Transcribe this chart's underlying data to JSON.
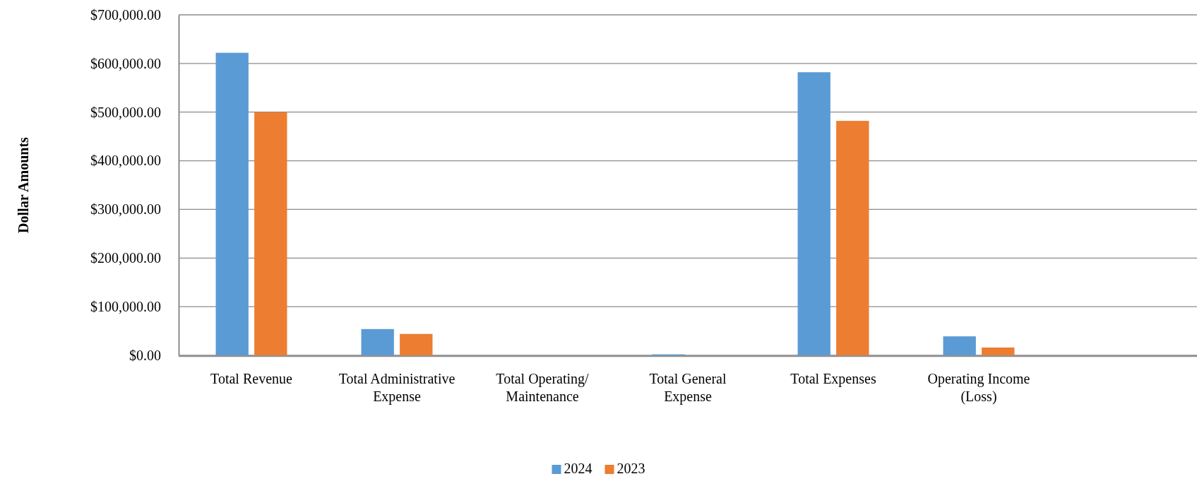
{
  "chart_data": {
    "type": "bar",
    "ylabel": "Dollar Amounts",
    "categories": [
      "Total Revenue",
      "Total Administrative Expense",
      "Total Operating/ Maintenance",
      "Total General Expense",
      "Total Expenses",
      "Operating Income (Loss)",
      null
    ],
    "series": [
      {
        "name": "2024",
        "color": "#5b9bd5",
        "values": [
          622000,
          54000,
          0,
          2000,
          582000,
          39000,
          null
        ]
      },
      {
        "name": "2023",
        "color": "#ed7d31",
        "values": [
          500000,
          44000,
          0,
          0,
          482000,
          16000,
          null
        ]
      }
    ],
    "ylim": [
      0,
      700000
    ],
    "yticks": [
      {
        "value": 0,
        "label": "$0.00"
      },
      {
        "value": 100000,
        "label": "$100,000.00"
      },
      {
        "value": 200000,
        "label": "$200,000.00"
      },
      {
        "value": 300000,
        "label": "$300,000.00"
      },
      {
        "value": 400000,
        "label": "$400,000.00"
      },
      {
        "value": 500000,
        "label": "$500,000.00"
      },
      {
        "value": 600000,
        "label": "$600,000.00"
      },
      {
        "value": 700000,
        "label": "$700,000.00"
      }
    ],
    "grid": "y",
    "legend": "bottom"
  }
}
